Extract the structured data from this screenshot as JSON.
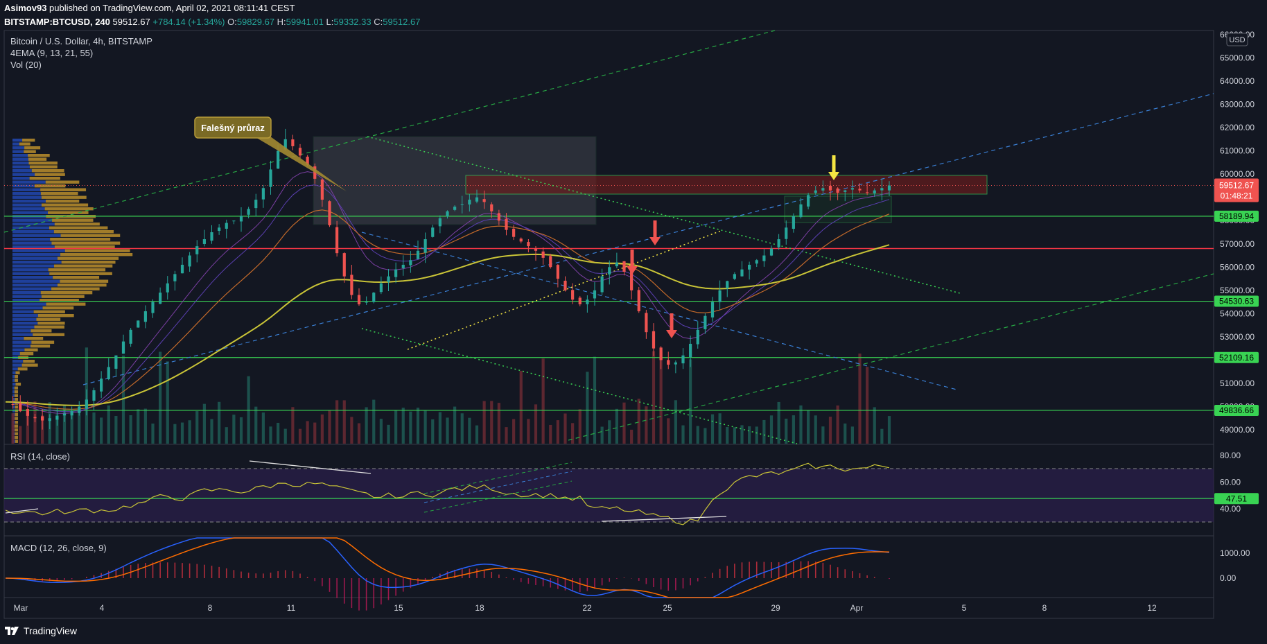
{
  "header": {
    "author": "Asimov93",
    "published_text": "published on TradingView.com, April 02, 2021 08:11:41 CEST",
    "symbol": "BITSTAMP:BTCUSD, 240",
    "price": "59512.67",
    "change": "+784.14 (+1.34%)",
    "ohlc": {
      "o_label": "O:",
      "o": "59829.67",
      "h_label": "H:",
      "h": "59941.01",
      "l_label": "L:",
      "l": "59332.33",
      "c_label": "C:",
      "c": "59512.67"
    }
  },
  "main_pane": {
    "title": "Bitcoin / U.S. Dollar, 4h, BITSTAMP",
    "indicator_1": "4EMA (9, 13, 21, 55)",
    "indicator_2": "Vol (20)",
    "currency": "USD",
    "price_ticks": [
      "66000.00",
      "65000.00",
      "64000.00",
      "63000.00",
      "62000.00",
      "61000.00",
      "60000.00",
      "59000.00",
      "58000.00",
      "57000.00",
      "56000.00",
      "55000.00",
      "54000.00",
      "53000.00",
      "52000.00",
      "51000.00",
      "50000.00",
      "49000.00"
    ],
    "last_price_tag": {
      "price": "59512.67",
      "countdown": "01:48:21"
    },
    "level_tags": [
      "58189.94",
      "54530.63",
      "52109.16",
      "49836.66"
    ],
    "annotation": "Falešný průraz"
  },
  "rsi_pane": {
    "title": "RSI (14, close)",
    "ticks": [
      "80.00",
      "60.00",
      "40.00"
    ],
    "value_tag": "47.51"
  },
  "macd_pane": {
    "title": "MACD (12, 26, close, 9)",
    "ticks": [
      "1000.00",
      "0.00"
    ]
  },
  "x_axis": {
    "labels": [
      "Mar",
      "4",
      "8",
      "11",
      "15",
      "18",
      "22",
      "25",
      "29",
      "Apr",
      "5",
      "8",
      "12"
    ]
  },
  "footer": {
    "brand": "TradingView"
  },
  "chart_data": {
    "type": "candlestick",
    "title": "Bitcoin / U.S. Dollar, 4h, BITSTAMP",
    "price_range": [
      49000,
      66000
    ],
    "horizontal_levels": [
      58189.94,
      56800,
      54530.63,
      52109.16,
      49836.66
    ],
    "resistance_zone": [
      59600,
      60200
    ],
    "rsi_range": [
      20,
      90
    ],
    "rsi_bands": [
      30,
      70
    ],
    "rsi_current": 47.51,
    "close_series_approx": [
      50200,
      50100,
      49800,
      49600,
      49500,
      49400,
      49500,
      49600,
      49700,
      49800,
      50000,
      50300,
      50700,
      51200,
      51700,
      52200,
      52800,
      53300,
      53700,
      54100,
      54500,
      54900,
      55300,
      55700,
      56100,
      56500,
      56900,
      57200,
      57500,
      57700,
      57900,
      58000,
      58200,
      58500,
      58900,
      59400,
      60200,
      61000,
      61500,
      61200,
      60800,
      60400,
      59800,
      58900,
      57800,
      56600,
      55600,
      54800,
      54400,
      54500,
      54900,
      55300,
      55600,
      55900,
      56100,
      56300,
      56700,
      57200,
      57700,
      58100,
      58400,
      58600,
      58700,
      58900,
      59000,
      58800,
      58400,
      58000,
      57600,
      57300,
      57100,
      56900,
      56700,
      56400,
      56000,
      55500,
      55000,
      54600,
      54400,
      54600,
      55000,
      55600,
      56000,
      56200,
      55800,
      55000,
      54100,
      53200,
      52500,
      52000,
      51800,
      51900,
      52200,
      52700,
      53300,
      53900,
      54500,
      55000,
      55400,
      55700,
      55900,
      56100,
      56300,
      56500,
      56800,
      57200,
      57700,
      58200,
      58700,
      59100,
      59300,
      59400,
      59300,
      59200,
      59300,
      59400,
      59300,
      59200,
      59300,
      59400,
      59512
    ]
  }
}
